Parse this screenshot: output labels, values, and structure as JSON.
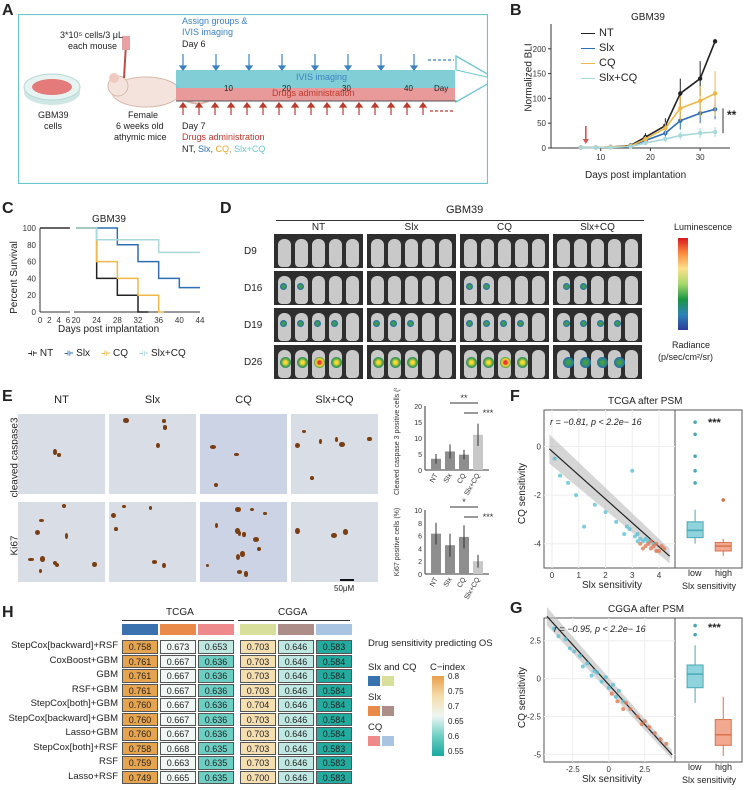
{
  "panel_labels": {
    "A": "A",
    "B": "B",
    "C": "C",
    "D": "D",
    "E": "E",
    "F": "F",
    "G": "G",
    "H": "H"
  },
  "panelA": {
    "cells_note": "3*10⁵ cells/3 μL",
    "each_mouse": "each mouse",
    "cells_label_1": "GBM39",
    "cells_label_2": "cells",
    "mice_label_1": "Female",
    "mice_label_2": "6 weeks old",
    "mice_label_3": "athymic mice",
    "assign_1": "Assign groups &",
    "assign_2": "IVIS imaging",
    "day6": "Day 6",
    "ivis_bar": "IVIS imaging",
    "drugs_bar": "Drugs administration",
    "ticks": [
      "10",
      "20",
      "30",
      "40",
      "Day"
    ],
    "day7": "Day 7",
    "drugs_admin": "Drugs administration",
    "groups": [
      "NT,",
      "Slx,",
      "CQ,",
      "Slx+CQ"
    ],
    "colors": {
      "ivis": "#6cc5cf",
      "drugs": "#e28a8a",
      "assign": "#3b82c4",
      "drugs_text": "#c0392b"
    }
  },
  "panelB": {
    "title": "GBM39",
    "legend": [
      "NT",
      "Slx",
      "CQ",
      "Slx+CQ"
    ],
    "sig": "**",
    "chart_data": {
      "type": "line",
      "title": "GBM39",
      "xlabel": "Days post implantation",
      "ylabel": "Normalized BLI",
      "xlim": [
        0,
        36
      ],
      "ylim": [
        0,
        250
      ],
      "xticks": [
        10,
        20,
        30
      ],
      "yticks": [
        0,
        50,
        100,
        150,
        200
      ],
      "x": [
        6,
        9,
        12,
        16,
        19,
        23,
        26,
        30,
        33
      ],
      "series": [
        {
          "name": "NT",
          "color": "#222222",
          "values": [
            1,
            1,
            2,
            5,
            22,
            45,
            110,
            140,
            215
          ],
          "err": [
            0,
            0,
            1,
            3,
            8,
            15,
            30,
            35,
            0
          ]
        },
        {
          "name": "Slx",
          "color": "#2e6fb5",
          "values": [
            1,
            1,
            2,
            4,
            15,
            30,
            55,
            70,
            78
          ],
          "err": [
            0,
            0,
            1,
            2,
            6,
            10,
            18,
            20,
            20
          ]
        },
        {
          "name": "CQ",
          "color": "#f0b84a",
          "values": [
            1,
            1,
            2,
            4,
            18,
            40,
            80,
            95,
            110
          ],
          "err": [
            0,
            0,
            1,
            2,
            6,
            12,
            25,
            30,
            45
          ]
        },
        {
          "name": "Slx+CQ",
          "color": "#a8d8d8",
          "values": [
            1,
            1,
            1,
            3,
            10,
            18,
            25,
            30,
            32
          ],
          "err": [
            0,
            0,
            0,
            1,
            4,
            6,
            8,
            10,
            10
          ]
        }
      ]
    }
  },
  "panelC": {
    "title": "GBM39",
    "legend": [
      "NT",
      "Slx",
      "CQ",
      "Slx+CQ"
    ],
    "chart_data": {
      "type": "line",
      "title": "GBM39",
      "xlabel": "Days post implantation",
      "ylabel": "Percent Survival",
      "ylim": [
        0,
        100
      ],
      "yticks": [
        0,
        20,
        40,
        60,
        80,
        100
      ],
      "xticks": [
        "0",
        "2",
        "4",
        "6",
        "20",
        "24",
        "28",
        "32",
        "36",
        "40",
        "44"
      ],
      "series": [
        {
          "name": "NT",
          "color": "#222222",
          "steps": [
            [
              0,
              100
            ],
            [
              24,
              100
            ],
            [
              24,
              40
            ],
            [
              28,
              40
            ],
            [
              28,
              20
            ],
            [
              32,
              20
            ],
            [
              32,
              0
            ],
            [
              34,
              0
            ]
          ]
        },
        {
          "name": "Slx",
          "color": "#2e6fb5",
          "steps": [
            [
              0,
              100
            ],
            [
              28,
              100
            ],
            [
              28,
              80
            ],
            [
              32,
              80
            ],
            [
              32,
              60
            ],
            [
              36,
              60
            ],
            [
              36,
              40
            ],
            [
              40,
              40
            ],
            [
              40,
              29
            ],
            [
              44,
              29
            ]
          ]
        },
        {
          "name": "CQ",
          "color": "#f0b84a",
          "steps": [
            [
              0,
              100
            ],
            [
              24,
              100
            ],
            [
              24,
              60
            ],
            [
              28,
              60
            ],
            [
              28,
              40
            ],
            [
              32,
              40
            ],
            [
              32,
              20
            ],
            [
              36,
              20
            ],
            [
              36,
              0
            ],
            [
              37,
              0
            ]
          ]
        },
        {
          "name": "Slx+CQ",
          "color": "#a8d8d8",
          "steps": [
            [
              0,
              100
            ],
            [
              24,
              100
            ],
            [
              24,
              86
            ],
            [
              36,
              86
            ],
            [
              36,
              71
            ],
            [
              44,
              71
            ]
          ]
        }
      ]
    }
  },
  "panelD": {
    "title": "GBM39",
    "columns": [
      "NT",
      "Slx",
      "CQ",
      "Slx+CQ"
    ],
    "rows": [
      "D9",
      "D16",
      "D19",
      "D26"
    ],
    "lum_title": "Luminescence",
    "radiance_1": "Radiance",
    "radiance_2": "(p/sec/cm²/sr)"
  },
  "panelE": {
    "columns": [
      "NT",
      "Slx",
      "CQ",
      "Slx+CQ"
    ],
    "rows": [
      "cleaved caspase3",
      "Ki67"
    ],
    "scale": "50μM",
    "chart_data": [
      {
        "type": "bar",
        "ylabel": "Cleaved caspase 3 positive cells (%)",
        "categories": [
          "NT",
          "Slx",
          "CQ",
          "Slx+CQ"
        ],
        "values": [
          3.5,
          5.8,
          4.8,
          11
        ],
        "err": [
          1.5,
          2.2,
          1.5,
          3.5
        ],
        "ylim": [
          0,
          20
        ],
        "yticks": [
          0,
          5,
          10,
          15,
          20
        ],
        "sig": [
          "**",
          "***"
        ]
      },
      {
        "type": "bar",
        "ylabel": "Ki67 positive cells (%)",
        "categories": [
          "NT",
          "Slx",
          "CQ",
          "Slx+CQ"
        ],
        "values": [
          6.3,
          4.5,
          5.8,
          2
        ],
        "err": [
          1.7,
          1.8,
          1.8,
          1
        ],
        "ylim": [
          0,
          10
        ],
        "yticks": [
          0,
          2,
          4,
          6,
          8,
          10
        ],
        "sig": [
          "*",
          "***"
        ]
      }
    ]
  },
  "panelF": {
    "title": "TCGA after PSM",
    "stat": "r = −0.81, p < 2.2e− 16",
    "sig": "***",
    "ylabel": "CQ sensitivity",
    "xlabel": "Slx sensitivity",
    "box_xlabels": [
      "low",
      "high"
    ],
    "box_title": "Slx sensitivity",
    "chart_data": {
      "type": "scatter",
      "xlim": [
        -0.3,
        4.6
      ],
      "ylim": [
        -5,
        1.5
      ],
      "xticks": [
        0,
        1,
        2,
        3,
        4
      ],
      "yticks": [
        0,
        -2,
        -4
      ],
      "fit": {
        "slope": -0.98,
        "intercept": -0.2
      },
      "low": [
        [
          0.1,
          -0.5
        ],
        [
          0.3,
          -1.2
        ],
        [
          0.6,
          -1.5
        ],
        [
          0.9,
          -2.0
        ],
        [
          1.2,
          -3.3
        ],
        [
          1.6,
          -2.4
        ],
        [
          2.0,
          -2.7
        ],
        [
          2.4,
          -3.1
        ],
        [
          2.8,
          -3.3
        ],
        [
          2.9,
          -3.4
        ],
        [
          3.0,
          -1.0
        ],
        [
          3.1,
          -3.7
        ],
        [
          3.2,
          -3.6
        ],
        [
          3.3,
          -3.8
        ],
        [
          3.4,
          -3.9
        ],
        [
          3.5,
          -3.8
        ],
        [
          3.6,
          -3.9
        ],
        [
          3.2,
          -3.9
        ],
        [
          2.7,
          -3.6
        ],
        [
          3.8,
          -4.0
        ]
      ],
      "high": [
        [
          3.3,
          -4.0
        ],
        [
          3.5,
          -4.1
        ],
        [
          3.6,
          -4.0
        ],
        [
          3.7,
          -4.2
        ],
        [
          3.8,
          -4.1
        ],
        [
          3.9,
          -4.0
        ],
        [
          4.0,
          -4.3
        ],
        [
          4.1,
          -4.1
        ],
        [
          3.4,
          -4.2
        ],
        [
          3.7,
          -3.9
        ],
        [
          4.2,
          -4.2
        ],
        [
          3.9,
          -4.3
        ]
      ],
      "box_low": {
        "q1": -3.75,
        "median": -3.45,
        "q3": -3.1,
        "wlo": -4.0,
        "whi": -2.6,
        "out": [
          0.5,
          -0.4,
          -1.0,
          -1.5,
          1.0
        ]
      },
      "box_high": {
        "q1": -4.3,
        "median": -4.1,
        "q3": -3.95,
        "wlo": -4.5,
        "whi": -3.8,
        "out": [
          -2.2
        ]
      }
    }
  },
  "panelG": {
    "title": "CGGA after PSM",
    "stat": "r = −0.95, p < 2.2e− 16",
    "sig": "***",
    "ylabel": "CQ sensitivity",
    "xlabel": "Slx sensitivity",
    "box_xlabels": [
      "low",
      "high"
    ],
    "box_title": "Slx sensitivity",
    "chart_data": {
      "type": "scatter",
      "xlim": [
        -4.5,
        4.6
      ],
      "ylim": [
        -5.5,
        4
      ],
      "xticks": [
        -2.5,
        0,
        2.5
      ],
      "yticks": [
        2.5,
        0,
        -2.5,
        -5
      ],
      "fit": {
        "slope": -1.05,
        "intercept": -0.4
      },
      "low": [
        [
          -3.8,
          3.3
        ],
        [
          -3.5,
          2.8
        ],
        [
          -3,
          2.6
        ],
        [
          -2.4,
          1.8
        ],
        [
          -2,
          1.5
        ],
        [
          -1.5,
          1.0
        ],
        [
          -1.2,
          0.2
        ],
        [
          -1,
          0.5
        ],
        [
          -0.8,
          0.4
        ],
        [
          -0.5,
          -0.2
        ],
        [
          -0.2,
          0.1
        ],
        [
          0,
          -0.6
        ],
        [
          0.3,
          -0.4
        ],
        [
          0.5,
          -1.2
        ],
        [
          0.7,
          -0.8
        ],
        [
          1.0,
          -1.5
        ],
        [
          -1.8,
          0.8
        ],
        [
          -2.7,
          2.0
        ]
      ],
      "high": [
        [
          0.2,
          -1.0
        ],
        [
          0.6,
          -1.5
        ],
        [
          1.0,
          -2.0
        ],
        [
          1.5,
          -2.0
        ],
        [
          2.0,
          -2.5
        ],
        [
          2.3,
          -3.0
        ],
        [
          2.8,
          -3.2
        ],
        [
          3.2,
          -3.6
        ],
        [
          3.6,
          -4.0
        ],
        [
          4.0,
          -4.3
        ],
        [
          1.2,
          -1.6
        ],
        [
          2.5,
          -2.8
        ]
      ],
      "box_low": {
        "q1": -0.6,
        "median": 0.3,
        "q3": 0.9,
        "wlo": -1.6,
        "whi": 2.2,
        "out": [
          3.5,
          2.9
        ]
      },
      "box_high": {
        "q1": -4.4,
        "median": -3.7,
        "q3": -2.7,
        "wlo": -5.1,
        "whi": -1.2,
        "out": []
      }
    }
  },
  "panelH": {
    "group_tcga": "TCGA",
    "group_cgga": "CGGA",
    "legend_title": "Drug sensitivity predicting OS",
    "legend_both": "Slx and CQ",
    "legend_slx": "Slx",
    "legend_cq": "CQ",
    "cindex_title": "C−index",
    "cindex_ticks": [
      "0.8",
      "0.75",
      "0.7",
      "0.65",
      "0.6",
      "0.55"
    ],
    "header_colors": [
      "#3a72b0",
      "#e9894a",
      "#ee8a8c",
      "#d7df9b",
      "#ad8d88",
      "#a9c3e3"
    ],
    "rows": [
      {
        "name": "StepCox[backward]+RSF",
        "v": [
          "0.758",
          "0.673",
          "0.653",
          "0.703",
          "0.646",
          "0.583"
        ]
      },
      {
        "name": "CoxBoost+GBM",
        "v": [
          "0.761",
          "0.667",
          "0.636",
          "0.703",
          "0.646",
          "0.584"
        ]
      },
      {
        "name": "GBM",
        "v": [
          "0.761",
          "0.667",
          "0.636",
          "0.703",
          "0.646",
          "0.584"
        ]
      },
      {
        "name": "RSF+GBM",
        "v": [
          "0.761",
          "0.667",
          "0.636",
          "0.703",
          "0.646",
          "0.584"
        ]
      },
      {
        "name": "StepCox[both]+GBM",
        "v": [
          "0.760",
          "0.667",
          "0.636",
          "0.704",
          "0.646",
          "0.584"
        ]
      },
      {
        "name": "StepCox[backward]+GBM",
        "v": [
          "0.760",
          "0.667",
          "0.636",
          "0.703",
          "0.646",
          "0.584"
        ]
      },
      {
        "name": "Lasso+GBM",
        "v": [
          "0.760",
          "0.667",
          "0.636",
          "0.703",
          "0.646",
          "0.584"
        ]
      },
      {
        "name": "StepCox[both]+RSF",
        "v": [
          "0.758",
          "0.668",
          "0.635",
          "0.703",
          "0.646",
          "0.583"
        ]
      },
      {
        "name": "RSF",
        "v": [
          "0.759",
          "0.663",
          "0.635",
          "0.703",
          "0.646",
          "0.583"
        ]
      },
      {
        "name": "Lasso+RSF",
        "v": [
          "0.749",
          "0.665",
          "0.635",
          "0.700",
          "0.646",
          "0.583"
        ]
      }
    ]
  }
}
